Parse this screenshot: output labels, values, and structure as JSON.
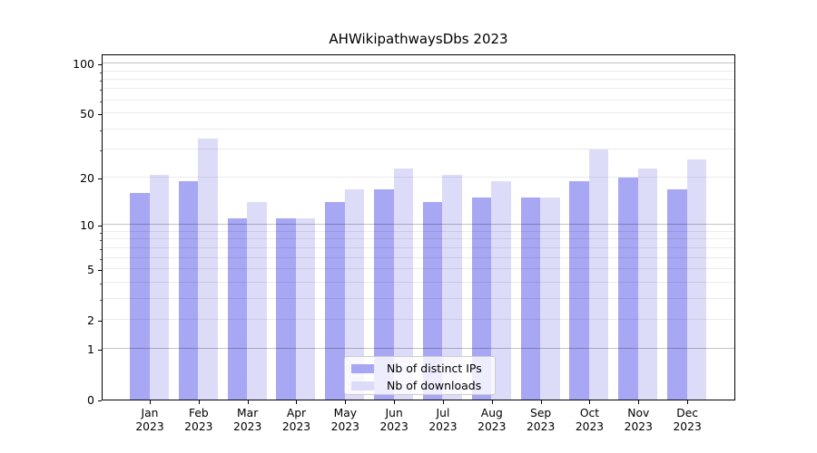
{
  "title": "AHWikipathwaysDbs 2023",
  "colors": {
    "distinct_ips": "#a7a7f3",
    "downloads": "#dcdcf9",
    "grid_major": "rgba(0,0,0,0.24)",
    "grid_minor": "rgba(0,0,0,0.08)",
    "axis": "#000000"
  },
  "legend": {
    "items": [
      {
        "label": "Nb of distinct IPs",
        "series": "distinct_ips"
      },
      {
        "label": "Nb of downloads",
        "series": "downloads"
      }
    ]
  },
  "chart_data": {
    "type": "bar",
    "title": "AHWikipathwaysDbs 2023",
    "categories": [
      "Jan 2023",
      "Feb 2023",
      "Mar 2023",
      "Apr 2023",
      "May 2023",
      "Jun 2023",
      "Jul 2023",
      "Aug 2023",
      "Sep 2023",
      "Oct 2023",
      "Nov 2023",
      "Dec 2023"
    ],
    "series": [
      {
        "name": "Nb of distinct IPs",
        "color": "#a7a7f3",
        "values": [
          16,
          19,
          11,
          11,
          14,
          17,
          14,
          15,
          15,
          19,
          20,
          17
        ]
      },
      {
        "name": "Nb of downloads",
        "color": "#dcdcf9",
        "values": [
          21,
          35,
          14,
          11,
          17,
          23,
          21,
          19,
          15,
          30,
          23,
          26
        ]
      }
    ],
    "xlabel": "",
    "ylabel": "",
    "yscale": "log1p",
    "yticks": [
      0,
      1,
      2,
      5,
      10,
      20,
      50,
      100
    ],
    "ylim": [
      0,
      115
    ],
    "grid": "horizontal",
    "legend_position": "lower center"
  }
}
